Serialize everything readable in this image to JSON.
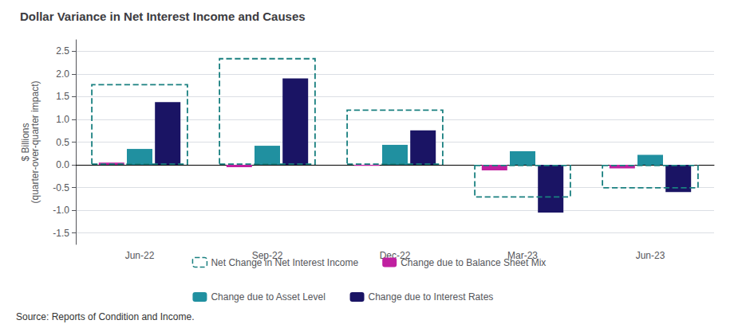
{
  "chart_data": {
    "type": "bar",
    "title": "Dollar Variance in Net Interest Income and Causes",
    "ylabel": "$ Billions\n(quarter-over-quarter impact)",
    "source": "Source: Reports of Condition and Income.",
    "categories": [
      "Jun-22",
      "Sep-22",
      "Dec-22",
      "Mar-23",
      "Jun-23"
    ],
    "series": [
      {
        "name": "Net Change in Net Interest Income",
        "color": "#1a8080",
        "line_style": "dashed",
        "values": [
          1.78,
          2.35,
          1.22,
          -0.72,
          -0.52
        ]
      },
      {
        "name": "Change due to Balance Sheet Mix",
        "color": "#c020a0",
        "values": [
          0.05,
          -0.05,
          -0.02,
          -0.12,
          -0.08
        ]
      },
      {
        "name": "Change due to Asset Level",
        "color": "#2090a0",
        "values": [
          0.35,
          0.42,
          0.44,
          0.3,
          0.22
        ]
      },
      {
        "name": "Change due to Interest Rates",
        "color": "#1a1464",
        "values": [
          1.38,
          1.9,
          0.76,
          -1.05,
          -0.6
        ]
      }
    ],
    "ylim": [
      -1.75,
      2.75
    ],
    "yticks": [
      -1.5,
      {
        "value": -1.0,
        "label": "-1.0"
      },
      -0.5,
      {
        "value": 0.0,
        "label": "0.0"
      },
      0.5,
      {
        "value": 1.0,
        "label": "1.0"
      },
      1.5,
      {
        "value": 2.0,
        "label": "2.0"
      },
      2.5
    ],
    "grid": true,
    "legend": "bottom"
  }
}
